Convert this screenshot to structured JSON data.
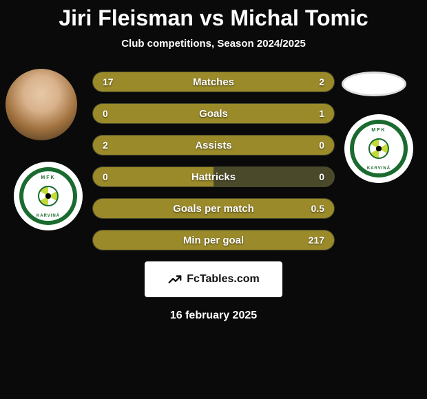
{
  "title": "Jiri Fleisman vs Michal Tomic",
  "subtitle": "Club competitions, Season 2024/2025",
  "date": "16 february 2025",
  "brand": "FcTables.com",
  "crest": {
    "top_text": "MFK",
    "bottom_text": "KARVINÁ"
  },
  "colors": {
    "bar_primary": "#9a8a2a",
    "bar_secondary": "#4a4a2a",
    "crest_green": "#1a6b2f"
  },
  "bars": [
    {
      "label": "Matches",
      "left": "17",
      "right": "2",
      "left_pct": 89,
      "right_pct": 11
    },
    {
      "label": "Goals",
      "left": "0",
      "right": "1",
      "left_pct": 18,
      "right_pct": 82
    },
    {
      "label": "Assists",
      "left": "2",
      "right": "0",
      "left_pct": 100,
      "right_pct": 0
    },
    {
      "label": "Hattricks",
      "left": "0",
      "right": "0",
      "left_pct": 50,
      "right_pct": 0
    },
    {
      "label": "Goals per match",
      "left": "",
      "right": "0.5",
      "left_pct": 0,
      "right_pct": 100
    },
    {
      "label": "Min per goal",
      "left": "",
      "right": "217",
      "left_pct": 0,
      "right_pct": 100
    }
  ]
}
